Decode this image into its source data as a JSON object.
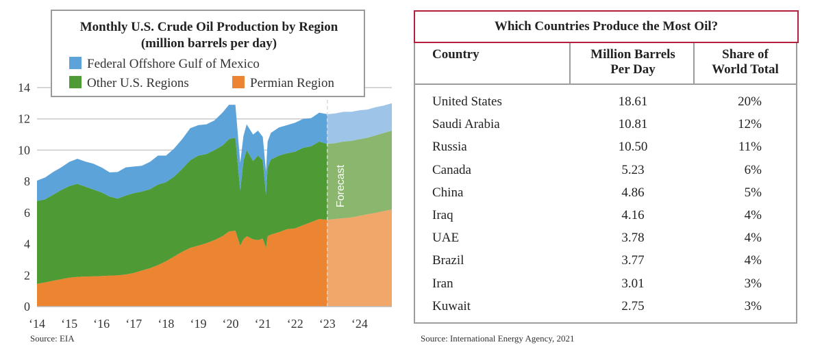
{
  "chart_data": {
    "type": "area",
    "title": "Monthly U.S. Crude Oil Production by Region",
    "subtitle": "(million barrels per day)",
    "ylim": [
      0,
      14
    ],
    "yticks": [
      0,
      2,
      4,
      6,
      8,
      10,
      12,
      14
    ],
    "xlim": [
      2014,
      2025
    ],
    "xtick_values": [
      2014,
      2015,
      2016,
      2017,
      2018,
      2019,
      2020,
      2021,
      2022,
      2023,
      2024
    ],
    "xtick_labels": [
      "‘14",
      "‘15",
      "‘16",
      "‘17",
      "‘18",
      "‘19",
      "‘20",
      "‘21",
      "‘22",
      "‘23",
      "‘24"
    ],
    "forecast_start": 2023.0,
    "forecast_label": "Forecast",
    "legend": [
      {
        "key": "gulf",
        "label": "Federal Offshore Gulf of Mexico",
        "color": "#5ba3d9"
      },
      {
        "key": "other",
        "label": "Other U.S. Regions",
        "color": "#4e9a34"
      },
      {
        "key": "permian",
        "label": "Permian Region",
        "color": "#ec8532"
      }
    ],
    "forecast_colors": {
      "gulf": "#9ec5e8",
      "other": "#8ab66e",
      "permian": "#f1a769"
    },
    "x": [
      2014.0,
      2014.25,
      2014.5,
      2014.75,
      2015.0,
      2015.25,
      2015.5,
      2015.75,
      2016.0,
      2016.25,
      2016.5,
      2016.75,
      2017.0,
      2017.25,
      2017.5,
      2017.75,
      2018.0,
      2018.25,
      2018.5,
      2018.75,
      2019.0,
      2019.25,
      2019.5,
      2019.75,
      2019.95,
      2020.15,
      2020.3,
      2020.4,
      2020.5,
      2020.7,
      2020.85,
      2021.0,
      2021.1,
      2021.15,
      2021.25,
      2021.5,
      2021.75,
      2022.0,
      2022.25,
      2022.5,
      2022.75,
      2023.0,
      2023.25,
      2023.5,
      2023.75,
      2024.0,
      2024.25,
      2024.5,
      2024.75,
      2025.0
    ],
    "series": [
      {
        "name": "Permian Region",
        "key": "permian",
        "values": [
          1.45,
          1.55,
          1.65,
          1.75,
          1.85,
          1.9,
          1.92,
          1.93,
          1.95,
          1.98,
          2.0,
          2.05,
          2.15,
          2.3,
          2.45,
          2.65,
          2.9,
          3.2,
          3.5,
          3.75,
          3.9,
          4.05,
          4.25,
          4.5,
          4.8,
          4.85,
          3.9,
          4.3,
          4.5,
          4.3,
          4.25,
          4.35,
          3.75,
          4.5,
          4.6,
          4.75,
          4.95,
          5.0,
          5.2,
          5.4,
          5.6,
          5.55,
          5.6,
          5.65,
          5.7,
          5.8,
          5.9,
          6.0,
          6.1,
          6.2
        ]
      },
      {
        "name": "Other U.S. Regions",
        "key": "other",
        "values": [
          5.3,
          5.3,
          5.5,
          5.7,
          5.85,
          5.95,
          5.75,
          5.55,
          5.35,
          5.05,
          4.9,
          5.05,
          5.1,
          5.05,
          5.05,
          5.15,
          5.05,
          5.1,
          5.3,
          5.6,
          5.75,
          5.7,
          5.75,
          5.8,
          5.9,
          5.95,
          3.5,
          5.0,
          5.5,
          5.0,
          5.4,
          5.0,
          3.4,
          4.4,
          4.8,
          4.9,
          4.85,
          4.9,
          4.95,
          4.85,
          4.95,
          4.85,
          4.85,
          4.9,
          4.9,
          4.9,
          4.9,
          4.95,
          5.0,
          5.05
        ]
      },
      {
        "name": "Federal Offshore Gulf of Mexico",
        "key": "gulf",
        "values": [
          1.3,
          1.4,
          1.45,
          1.45,
          1.55,
          1.6,
          1.6,
          1.65,
          1.6,
          1.55,
          1.7,
          1.8,
          1.7,
          1.65,
          1.75,
          1.85,
          1.7,
          1.8,
          1.9,
          2.05,
          1.95,
          1.9,
          1.9,
          2.1,
          2.2,
          2.1,
          1.8,
          1.6,
          1.65,
          1.7,
          1.6,
          1.5,
          1.5,
          1.65,
          1.7,
          1.8,
          1.8,
          1.85,
          1.85,
          1.8,
          1.85,
          1.9,
          1.9,
          1.9,
          1.85,
          1.85,
          1.8,
          1.8,
          1.75,
          1.75
        ]
      }
    ]
  },
  "chart_source": "Source: EIA",
  "table": {
    "title": "Which Countries Produce the Most Oil?",
    "headers": {
      "country": "Country",
      "mbpd_line1": "Million Barrels",
      "mbpd_line2": "Per Day",
      "share_line1": "Share of",
      "share_line2": "World Total"
    },
    "rows": [
      {
        "country": "United States",
        "mbpd": "18.61",
        "share": "20%"
      },
      {
        "country": "Saudi Arabia",
        "mbpd": "10.81",
        "share": "12%"
      },
      {
        "country": "Russia",
        "mbpd": "10.50",
        "share": "11%"
      },
      {
        "country": "Canada",
        "mbpd": "5.23",
        "share": "6%"
      },
      {
        "country": "China",
        "mbpd": "4.86",
        "share": "5%"
      },
      {
        "country": "Iraq",
        "mbpd": "4.16",
        "share": "4%"
      },
      {
        "country": "UAE",
        "mbpd": "3.78",
        "share": "4%"
      },
      {
        "country": "Brazil",
        "mbpd": "3.77",
        "share": "4%"
      },
      {
        "country": "Iran",
        "mbpd": "3.01",
        "share": "3%"
      },
      {
        "country": "Kuwait",
        "mbpd": "2.75",
        "share": "3%"
      }
    ],
    "source": "Source:  International Energy Agency, 2021"
  }
}
